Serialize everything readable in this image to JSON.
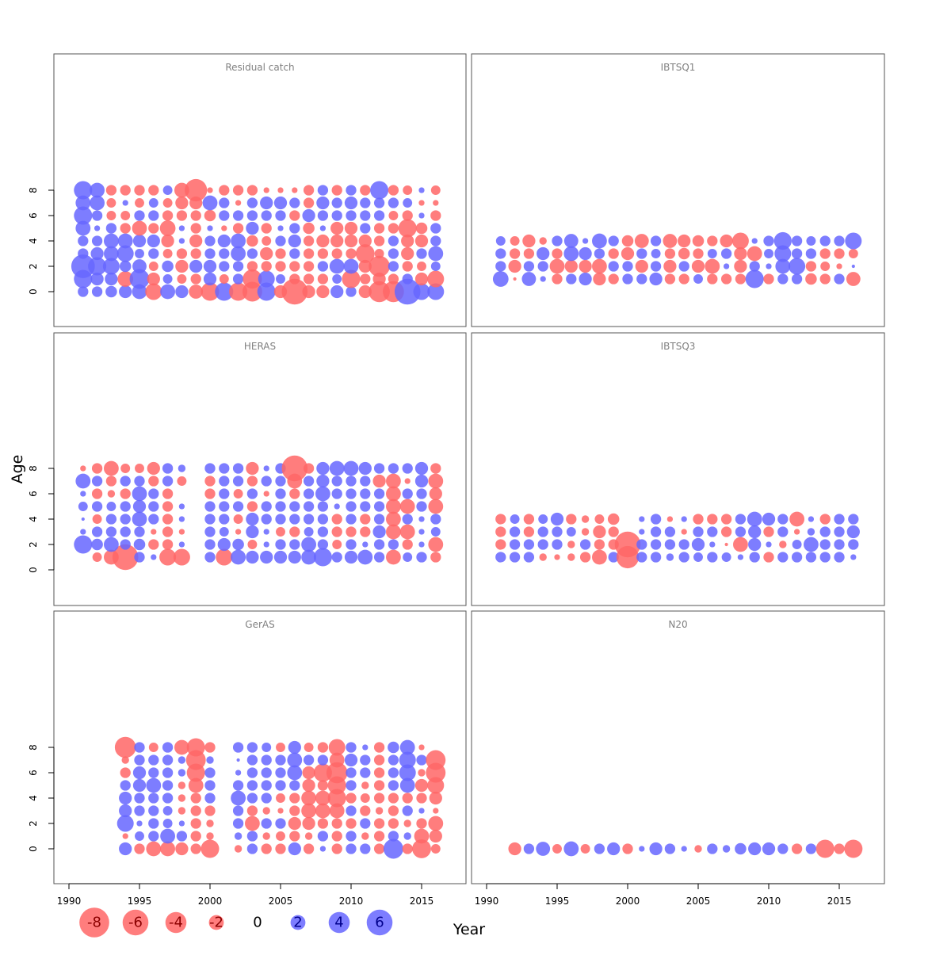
{
  "chart_data": {
    "type": "scatter",
    "subtype": "bubble",
    "description_encoding": "bubble area proportional to |residual|; red = negative, blue = positive",
    "xlabel": "Year",
    "ylabel": "Age",
    "xlim": [
      1990,
      2016
    ],
    "ylim": [
      -1,
      9
    ],
    "x_ticks": [
      1990,
      1995,
      2000,
      2005,
      2010,
      2015
    ],
    "y_ticks": [
      0,
      2,
      4,
      6,
      8
    ],
    "colors": {
      "negative": "#ff6666",
      "positive": "#6666ff"
    },
    "legend": {
      "labels": [
        "-8",
        "-6",
        "-4",
        "-2",
        "0",
        "2",
        "4",
        "6"
      ],
      "values": [
        -8,
        -6,
        -4,
        -2,
        0,
        2,
        4,
        6
      ]
    },
    "panels": [
      {
        "title": "Residual catch",
        "years": [
          1991,
          1992,
          1993,
          1994,
          1995,
          1996,
          1997,
          1998,
          1999,
          2000,
          2001,
          2002,
          2003,
          2004,
          2005,
          2006,
          2007,
          2008,
          2009,
          2010,
          2011,
          2012,
          2013,
          2014,
          2015,
          2016
        ],
        "ages": [
          0,
          1,
          2,
          3,
          4,
          5,
          6,
          7,
          8
        ],
        "residuals": [
          [
            1,
            1,
            1.2,
            1.5,
            2,
            -2.5,
            2,
            1.5,
            -1.8,
            -3,
            3,
            -3,
            -3.5,
            3,
            -1.5,
            -6,
            -1.5,
            -1.5,
            1.5,
            1,
            -1.5,
            -4,
            -4,
            6,
            2.5,
            2.5
          ],
          [
            3,
            1.5,
            1.5,
            -2.2,
            3.5,
            -1.5,
            0.8,
            -0.8,
            -1,
            1.5,
            -0.8,
            1,
            -3.3,
            2.5,
            0.8,
            -1,
            -1,
            -1,
            0.8,
            -3,
            -1,
            -1.5,
            -1,
            1,
            -1.5,
            -2.5
          ],
          [
            5,
            3,
            2.5,
            1.2,
            1.8,
            -0.8,
            1.2,
            -1.5,
            1.5,
            1.5,
            1,
            1,
            -1,
            -1,
            -1,
            -1,
            -1,
            1,
            2,
            2,
            -1.5,
            -4,
            1,
            -1,
            -0.8,
            0.8
          ],
          [
            1,
            1.5,
            2,
            2.5,
            0.8,
            1,
            -0.8,
            -1,
            -1,
            1,
            1,
            2,
            1,
            -1.5,
            -1,
            1,
            -1,
            -1,
            -1,
            -1,
            -3.2,
            -0.8,
            1,
            -1.5,
            1,
            2
          ],
          [
            1,
            1,
            2,
            2,
            1.5,
            1.5,
            -1.5,
            0.3,
            -1.5,
            1,
            1.5,
            2,
            -1.2,
            -0.8,
            1,
            1.5,
            -1,
            -1.5,
            -1.5,
            -1.5,
            -1.5,
            -1,
            1,
            -1.5,
            -1.5,
            1
          ],
          [
            2,
            0.3,
            1,
            -1,
            -2,
            -1,
            -2.2,
            0.3,
            -1,
            0.3,
            -0.3,
            -1,
            1.5,
            -1,
            0.3,
            1,
            -1.2,
            0.3,
            -1.5,
            -1.5,
            1,
            -1,
            -1,
            -3,
            -1.2,
            1
          ],
          [
            3,
            1,
            -0.8,
            -0.8,
            1,
            1,
            -1,
            -1,
            -1,
            -1.2,
            1,
            1,
            1,
            1,
            1,
            -1,
            1.5,
            1,
            1,
            1,
            1,
            1,
            -0.8,
            -1,
            0.3,
            -1
          ],
          [
            2,
            2,
            -0.8,
            0.3,
            -0.8,
            0.8,
            -0.8,
            -1.5,
            -1.5,
            2,
            1,
            -0.3,
            1,
            1.5,
            1.5,
            1,
            -1,
            1.5,
            1,
            1.5,
            1,
            1,
            1,
            0.8,
            -0.3,
            -0.3
          ],
          [
            3,
            2,
            -1,
            -1,
            -1,
            -1,
            0.8,
            -2,
            -4.5,
            -0.3,
            -1,
            -1,
            -1,
            -0.3,
            -0.3,
            -0.3,
            -1,
            1,
            -1,
            1,
            -1,
            3,
            -1,
            -0.8,
            0.3,
            -0.8
          ]
        ]
      },
      {
        "title": "IBTSQ1",
        "years": [
          1991,
          1992,
          1993,
          1994,
          1995,
          1996,
          1997,
          1998,
          1999,
          2000,
          2001,
          2002,
          2003,
          2004,
          2005,
          2006,
          2007,
          2008,
          2009,
          2010,
          2011,
          2012,
          2013,
          2014,
          2015,
          2016
        ],
        "ages": [
          1,
          2,
          3,
          4
        ],
        "residuals": [
          [
            2.2,
            -0.1,
            1.8,
            0.3,
            -1,
            1,
            1.5,
            -1.5,
            -1,
            1,
            1,
            1.5,
            -1,
            -1,
            0.8,
            -1,
            -1,
            -1,
            3,
            -1,
            1,
            1,
            -1.2,
            -1,
            1,
            -1.8
          ],
          [
            1,
            -1.5,
            1,
            1,
            -2,
            -1.5,
            -1.5,
            -2,
            1,
            1,
            -1.5,
            1,
            -1.5,
            1,
            -1.5,
            -2,
            0.3,
            -1.5,
            1,
            0.3,
            2,
            2.5,
            -1,
            -0.8,
            -0.3,
            0.1
          ],
          [
            1,
            -1,
            -1,
            1.5,
            -1,
            2,
            1.5,
            1,
            -1,
            -1.5,
            1,
            0.8,
            -1,
            -1.2,
            -1,
            0.8,
            1,
            -1.5,
            -2,
            0.8,
            2.5,
            1,
            1,
            -1,
            -1,
            -0.8
          ],
          [
            0.8,
            -0.8,
            -1.5,
            -0.5,
            1,
            1.8,
            0.3,
            2,
            1,
            -1.2,
            -1.8,
            1,
            -1.8,
            -1.5,
            -1.2,
            -1,
            -1.5,
            -2.5,
            0.3,
            1,
            2.8,
            1,
            0.8,
            1,
            1,
            2.5
          ]
        ]
      },
      {
        "title": "HERAS",
        "years": [
          1991,
          1992,
          1993,
          1994,
          1995,
          1996,
          1997,
          1998,
          2000,
          2001,
          2002,
          2003,
          2004,
          2005,
          2006,
          2007,
          2008,
          2009,
          2010,
          2011,
          2012,
          2013,
          2014,
          2015,
          2016
        ],
        "ages": [
          1,
          2,
          3,
          4,
          5,
          6,
          7,
          8
        ],
        "residuals": [
          [
            null,
            -0.8,
            -2,
            -6,
            1,
            0.3,
            -2.5,
            -2.5,
            1,
            -2.5,
            2,
            1.5,
            1.5,
            1.5,
            1.5,
            2,
            3,
            1,
            1.5,
            2,
            1,
            -2,
            0.8,
            1,
            -1
          ],
          [
            3,
            1.2,
            2,
            1,
            1.2,
            -1,
            -1,
            0.3,
            1,
            1.5,
            1.2,
            -0.8,
            0.3,
            1,
            1,
            2,
            1,
            -0.8,
            1,
            0.3,
            1,
            1,
            -1,
            0.3,
            -2
          ],
          [
            0.3,
            1,
            1,
            1,
            1,
            -0.3,
            -1,
            -0.3,
            1,
            0.8,
            -0.3,
            1.5,
            0.3,
            -0.8,
            -1,
            0.8,
            1,
            -1,
            -1,
            -1,
            1.5,
            -2,
            -2,
            0.3,
            0.8
          ],
          [
            0.1,
            -0.8,
            1,
            1,
            2,
            1,
            -1,
            0.3,
            1,
            1,
            -0.8,
            1.5,
            1,
            1,
            1,
            1,
            1,
            -1,
            1,
            -1,
            1,
            -2,
            1,
            0.3,
            1
          ],
          [
            0.8,
            1,
            0.8,
            1,
            1.5,
            1,
            -1,
            0.3,
            1,
            1,
            1,
            -1,
            1,
            1,
            1,
            1,
            1,
            0.3,
            1,
            1,
            1,
            -2,
            -2,
            1,
            -2
          ],
          [
            0.3,
            -1,
            -0.5,
            -1,
            2,
            1,
            -1,
            null,
            -1,
            1,
            -0.8,
            1,
            -0.3,
            1,
            -1,
            1,
            2,
            1,
            1,
            1,
            1,
            -2,
            1,
            1,
            -1.5
          ],
          [
            2,
            1,
            -1,
            1,
            1,
            -1,
            1,
            -0.8,
            -1,
            1,
            1,
            -1,
            1,
            1,
            -2,
            1,
            1.5,
            1,
            1,
            1,
            -1.5,
            -2,
            -0.3,
            1.5,
            -2
          ],
          [
            -0.3,
            -1,
            -2,
            -0.8,
            -0.8,
            -1.5,
            1,
            0.5,
            1,
            1,
            1,
            -1.5,
            0.3,
            1,
            -6,
            -1,
            1.5,
            2,
            2,
            1.5,
            1,
            1,
            1,
            1.5,
            -1
          ]
        ]
      },
      {
        "title": "IBTSQ3",
        "years": [
          1991,
          1992,
          1993,
          1994,
          1995,
          1996,
          1997,
          1998,
          1999,
          2000,
          2001,
          2002,
          2003,
          2004,
          2005,
          2006,
          2007,
          2008,
          2009,
          2010,
          2011,
          2012,
          2013,
          2014,
          2015,
          2016
        ],
        "ages": [
          1,
          2,
          3,
          4
        ],
        "residuals": [
          [
            1,
            1,
            1,
            -0.5,
            -0.3,
            -0.5,
            -1,
            -2,
            1,
            -4.5,
            1,
            1,
            0.5,
            1,
            0.8,
            1,
            0.8,
            0.3,
            1,
            -1,
            1,
            1,
            1,
            1,
            1,
            0.3
          ],
          [
            -1,
            1,
            1,
            1,
            1,
            -0.5,
            1,
            -1,
            -1,
            -6,
            1,
            1,
            1,
            1,
            1.5,
            0.3,
            -0.1,
            -2,
            1.5,
            0.3,
            -0.5,
            0.8,
            2,
            1,
            1,
            1
          ],
          [
            -1,
            1,
            -1,
            1,
            1,
            0.8,
            -0.5,
            -1.5,
            -1,
            null,
            0.3,
            1,
            1,
            -0.3,
            1,
            1,
            -1,
            1,
            1.5,
            -1,
            1,
            -0.3,
            0.5,
            1,
            1,
            1.5
          ],
          [
            -1,
            0.8,
            -1,
            0.8,
            1.5,
            -1,
            -0.5,
            -0.8,
            -1.2,
            null,
            0.3,
            1,
            -0.3,
            0.3,
            -1,
            -1,
            -1,
            1,
            2,
            1.5,
            1,
            -2,
            0.3,
            -1,
            1,
            1
          ]
        ]
      },
      {
        "title": "GerAS",
        "years": [
          1994,
          1995,
          1996,
          1997,
          1998,
          1999,
          2000,
          2002,
          2003,
          2004,
          2005,
          2006,
          2007,
          2008,
          2009,
          2010,
          2011,
          2012,
          2013,
          2014,
          2015,
          2016
        ],
        "ages": [
          0,
          1,
          2,
          3,
          4,
          5,
          6,
          7,
          8
        ],
        "residuals": [
          [
            1.5,
            -1,
            -2,
            -2,
            -1.5,
            -1,
            -3,
            -0.5,
            1,
            -1,
            -1,
            1.5,
            -1,
            0.3,
            -1,
            1,
            1,
            -1,
            3.5,
            -1,
            -3.2,
            -0.8
          ],
          [
            -0.3,
            0.8,
            1,
            2,
            1,
            -1,
            -0.5,
            0.5,
            1,
            -0.5,
            -0.8,
            -1,
            -0.5,
            1,
            -1,
            1,
            -0.5,
            -1,
            1,
            0.5,
            -2,
            -1.5
          ],
          [
            2.5,
            0.3,
            1,
            0.8,
            0.3,
            -1,
            -0.5,
            1,
            -2,
            1,
            1,
            -1.5,
            -1.5,
            -1,
            -1,
            -1,
            1,
            -1,
            -1,
            -0.5,
            -1,
            -2
          ],
          [
            1.5,
            1,
            1,
            0.8,
            -0.5,
            -1,
            -1,
            1,
            -1,
            -0.5,
            -0.3,
            -1,
            -2,
            -2,
            -2,
            1,
            -1,
            -0.5,
            -1,
            1,
            0.3,
            -0.3
          ],
          [
            1.5,
            1,
            1,
            1,
            -0.5,
            -1,
            1,
            2,
            1,
            1,
            -0.8,
            -1,
            -2,
            -2,
            -3,
            -1,
            -0.8,
            -1,
            -1,
            -1,
            -1,
            -1.5
          ],
          [
            1,
            1.5,
            2,
            1,
            -0.5,
            -2,
            1,
            1,
            1,
            1,
            1,
            1,
            -1.5,
            -1,
            -3,
            1,
            -0.5,
            -1,
            1,
            2,
            -1.5,
            -2.5
          ],
          [
            -1,
            1.5,
            1,
            1,
            0.5,
            -3,
            1,
            0.3,
            1,
            1,
            1,
            2,
            -1.5,
            -3,
            -4,
            1,
            1,
            -1,
            1,
            2.5,
            -0.5,
            -3.5
          ],
          [
            -0.5,
            1,
            1,
            1,
            0.5,
            -3.5,
            0.5,
            0.1,
            1,
            1,
            1,
            2,
            1,
            1,
            -2,
            1.5,
            1,
            -1,
            1,
            2.5,
            1,
            -3.5
          ],
          [
            -4,
            1,
            -0.8,
            1,
            -2,
            -3,
            -1,
            1,
            1,
            0.8,
            -0.8,
            1.5,
            -0.8,
            -1,
            -2.5,
            1,
            0.3,
            -1,
            1.2,
            2,
            -0.3,
            null
          ]
        ]
      },
      {
        "title": "N20",
        "years": [
          1992,
          1993,
          1994,
          1995,
          1996,
          1997,
          1998,
          1999,
          2000,
          2001,
          2002,
          2003,
          2004,
          2005,
          2006,
          2007,
          2008,
          2009,
          2010,
          2011,
          2012,
          2013,
          2014,
          2015,
          2016
        ],
        "ages": [
          0
        ],
        "residuals": [
          [
            -1.5,
            1,
            1.8,
            -0.8,
            2,
            -0.8,
            1,
            1.5,
            -1,
            0.3,
            1.5,
            1,
            0.3,
            -0.5,
            1,
            0.5,
            1.2,
            1.5,
            1.5,
            1,
            -1,
            1,
            -3,
            -1,
            -3
          ]
        ]
      }
    ]
  }
}
